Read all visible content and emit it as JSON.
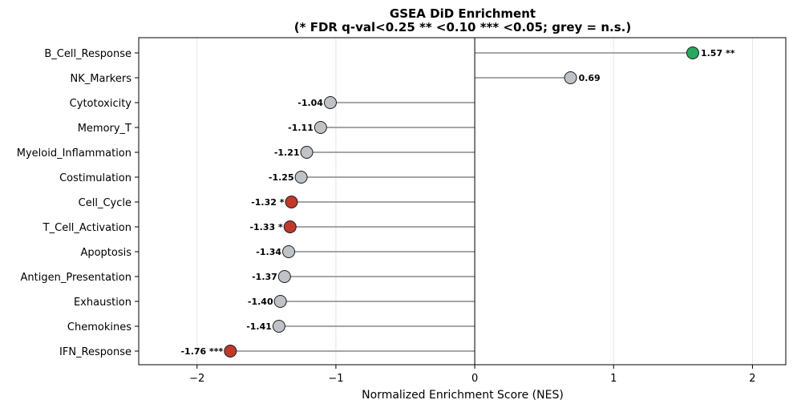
{
  "chart_data": {
    "type": "lollipop",
    "title_line1": "GSEA DiD Enrichment",
    "title_line2": "(* FDR q-val<0.25  ** <0.10  *** <0.05; grey = n.s.)",
    "xlabel": "Normalized Enrichment Score (NES)",
    "ylabel": "",
    "xlim": [
      -2.42,
      2.24
    ],
    "xticks": [
      -2,
      -1,
      0,
      1,
      2
    ],
    "xtick_labels": [
      "−2",
      "−1",
      "0",
      "1",
      "2"
    ],
    "grid": "vertical",
    "colors": {
      "positive_significant": "#27a85f",
      "negative_significant": "#c0392b",
      "not_significant": "#bfc2c7",
      "stem": "#a6a6a6"
    },
    "categories": [
      "B_Cell_Response",
      "NK_Markers",
      "Cytotoxicity",
      "Memory_T",
      "Myeloid_Inflammation",
      "Costimulation",
      "Cell_Cycle",
      "T_Cell_Activation",
      "Apoptosis",
      "Antigen_Presentation",
      "Exhaustion",
      "Chemokines",
      "IFN_Response"
    ],
    "values": [
      1.57,
      0.69,
      -1.04,
      -1.11,
      -1.21,
      -1.25,
      -1.32,
      -1.33,
      -1.34,
      -1.37,
      -1.4,
      -1.41,
      -1.76
    ],
    "significance": [
      "**",
      "",
      "",
      "",
      "",
      "",
      "*",
      "*",
      "",
      "",
      "",
      "",
      "***"
    ],
    "labels": [
      "1.57 **",
      "0.69",
      "-1.04",
      "-1.11",
      "-1.21",
      "-1.25",
      "-1.32 *",
      "-1.33 *",
      "-1.34",
      "-1.37",
      "-1.40",
      "-1.41",
      "-1.76 ***"
    ]
  }
}
